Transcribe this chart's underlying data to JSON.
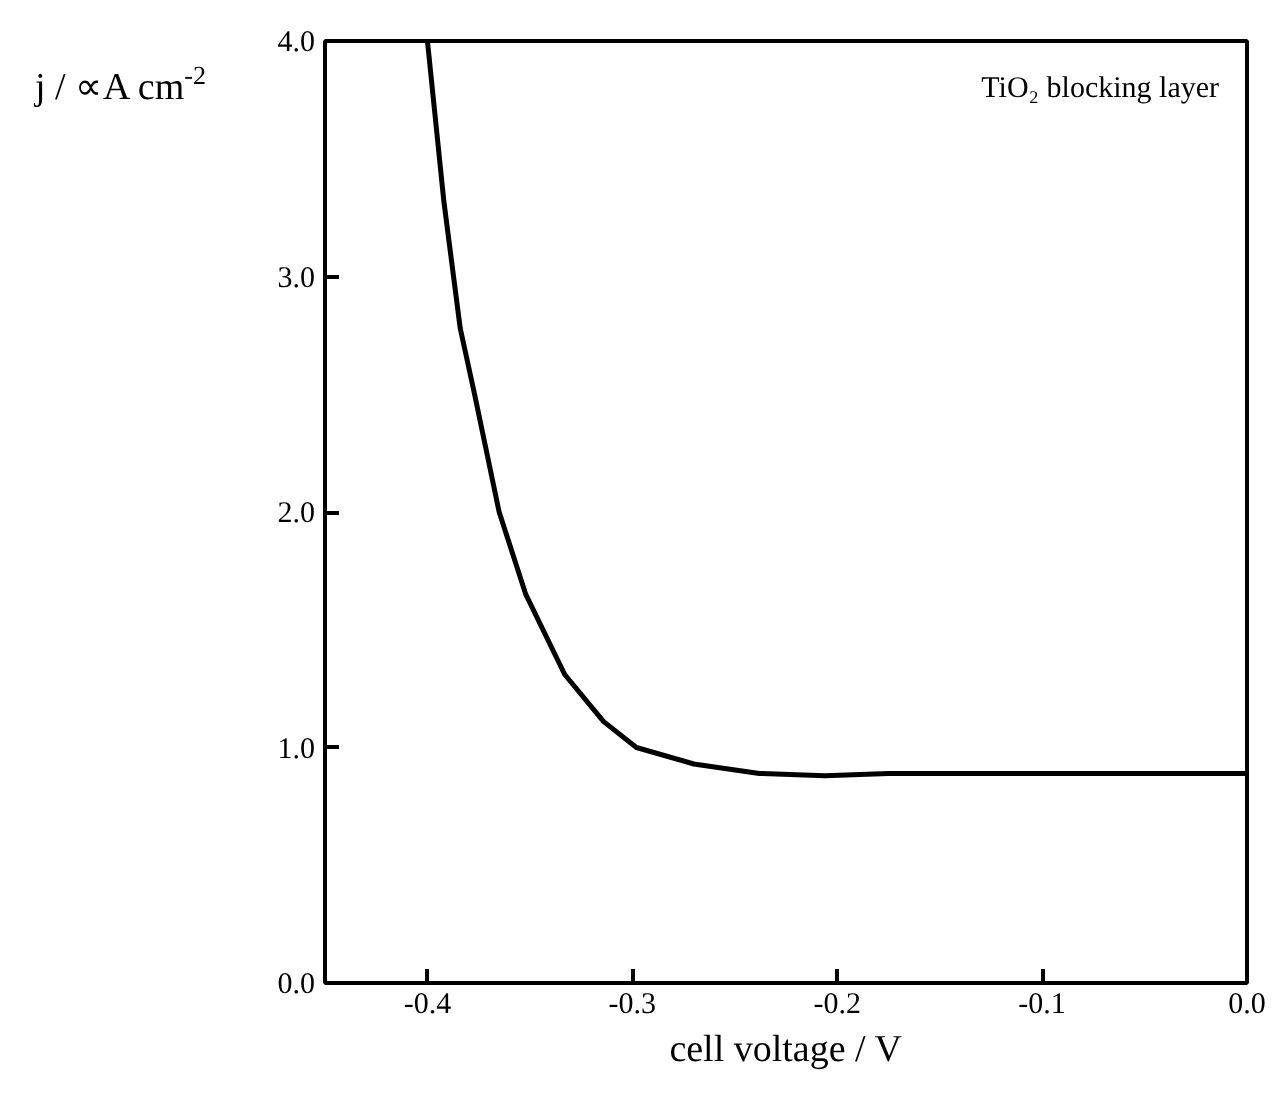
{
  "chart_data": {
    "type": "line",
    "xlabel": "cell voltage / V",
    "ylabel": "j / ∝A cm$^{-2}$",
    "annotations": [
      "TiO₂ blocking layer"
    ],
    "x": [
      -0.4,
      -0.392,
      -0.384,
      -0.377,
      -0.365,
      -0.352,
      -0.333,
      -0.314,
      -0.298,
      -0.27,
      -0.238,
      -0.206,
      -0.175,
      -0.1,
      0.0
    ],
    "series": [
      {
        "color": "#000000",
        "values": [
          4.0,
          3.32,
          2.78,
          2.5,
          2.0,
          1.65,
          1.31,
          1.11,
          1.0,
          0.93,
          0.89,
          0.88,
          0.89,
          0.89,
          0.89
        ]
      }
    ],
    "xlim": [
      -0.45,
      0.0
    ],
    "xticks": [
      -0.4,
      -0.3,
      -0.2,
      -0.1,
      {
        "value": 0.0,
        "label": "0.0"
      }
    ],
    "ylim": [
      0.0,
      4.0
    ],
    "yticks": [
      {
        "value": 0.0,
        "label": "0.0"
      },
      {
        "value": 1.0,
        "label": "1.0"
      },
      {
        "value": 2.0,
        "label": "2.0"
      },
      {
        "value": 3.0,
        "label": "3.0"
      },
      {
        "value": 4.0,
        "label": "4.0"
      }
    ],
    "grid": false,
    "marker": "none",
    "line_style": "solid"
  }
}
